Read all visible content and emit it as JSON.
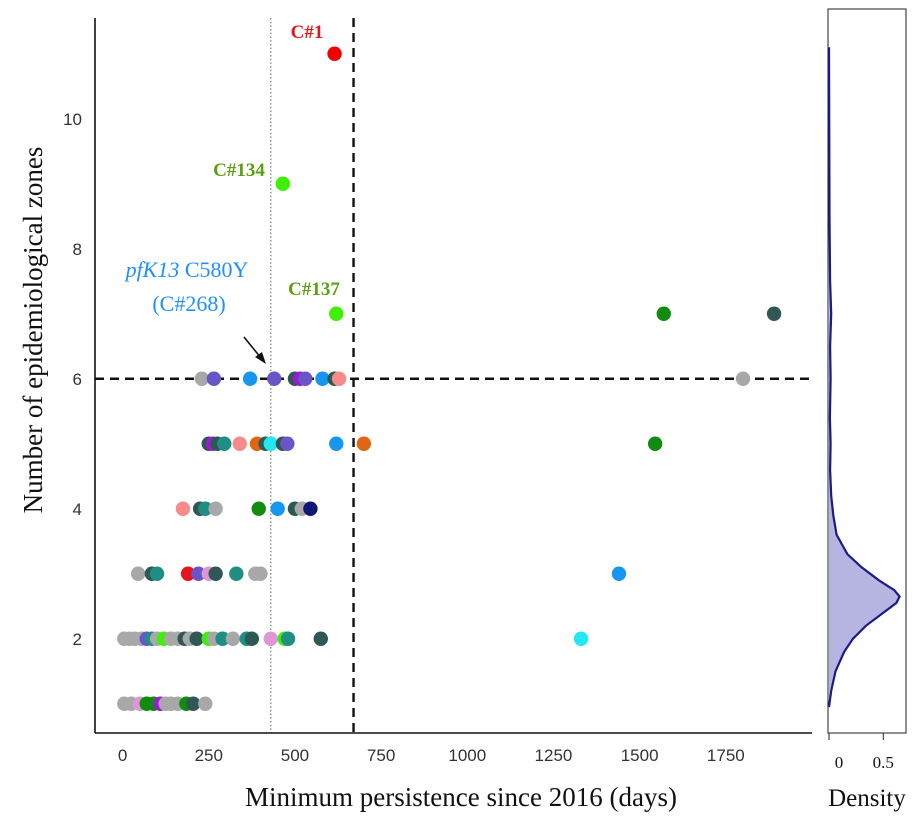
{
  "chart_data": {
    "type": "scatter",
    "xlabel": "Minimum persistence since 2016 (days)",
    "ylabel": "Number of epidemiological zones",
    "xlim": [
      -80,
      2000
    ],
    "ylim": [
      0.55,
      11.55
    ],
    "x_ticks": [
      0,
      250,
      500,
      750,
      1000,
      1250,
      1500,
      1750
    ],
    "y_ticks": [
      2,
      4,
      6,
      8,
      10
    ],
    "reference_lines": {
      "dotted_vertical_x": 430,
      "dashed_vertical_x": 670,
      "dashed_horizontal_y": 6
    },
    "annotations": {
      "c1": {
        "text": "C#1",
        "color": "#e8141b"
      },
      "c134": {
        "text": "C#134",
        "color": "#5aa012"
      },
      "c137": {
        "text": "C#137",
        "color": "#5aa012"
      },
      "pfk13_gene": "pfK13",
      "pfk13_mut": " C580Y",
      "pfk13_clone": "(C#268)",
      "pfk13_color": "#1e90ff"
    },
    "points": [
      {
        "x": 615,
        "y": 11,
        "c": "#f00000"
      },
      {
        "x": 465,
        "y": 9,
        "c": "#3ef005"
      },
      {
        "x": 620,
        "y": 7,
        "c": "#3ef005"
      },
      {
        "x": 1570,
        "y": 7,
        "c": "#118c11"
      },
      {
        "x": 1890,
        "y": 7,
        "c": "#2f5754"
      },
      {
        "x": 230,
        "y": 6,
        "c": "#a8a8a8"
      },
      {
        "x": 265,
        "y": 6,
        "c": "#6a55c8"
      },
      {
        "x": 370,
        "y": 6,
        "c": "#1796f0"
      },
      {
        "x": 440,
        "y": 6,
        "c": "#6a55c8"
      },
      {
        "x": 500,
        "y": 6,
        "c": "#2f5754"
      },
      {
        "x": 515,
        "y": 6,
        "c": "#9a1bd6"
      },
      {
        "x": 530,
        "y": 6,
        "c": "#6a55c8"
      },
      {
        "x": 580,
        "y": 6,
        "c": "#1796f0"
      },
      {
        "x": 615,
        "y": 6,
        "c": "#2f5754"
      },
      {
        "x": 628,
        "y": 6,
        "c": "#f78a8a"
      },
      {
        "x": 1800,
        "y": 6,
        "c": "#a8a8a8"
      },
      {
        "x": 250,
        "y": 5,
        "c": "#2f5754"
      },
      {
        "x": 262,
        "y": 5,
        "c": "#9a1bd6"
      },
      {
        "x": 275,
        "y": 5,
        "c": "#2f5754"
      },
      {
        "x": 295,
        "y": 5,
        "c": "#1f8f86"
      },
      {
        "x": 340,
        "y": 5,
        "c": "#f78a8a"
      },
      {
        "x": 390,
        "y": 5,
        "c": "#e06611"
      },
      {
        "x": 415,
        "y": 5,
        "c": "#2f5754"
      },
      {
        "x": 430,
        "y": 5,
        "c": "#23e8f2"
      },
      {
        "x": 465,
        "y": 5,
        "c": "#2f5754"
      },
      {
        "x": 478,
        "y": 5,
        "c": "#6a55c8"
      },
      {
        "x": 620,
        "y": 5,
        "c": "#1796f0"
      },
      {
        "x": 700,
        "y": 5,
        "c": "#e06611"
      },
      {
        "x": 1545,
        "y": 5,
        "c": "#118c11"
      },
      {
        "x": 175,
        "y": 4,
        "c": "#f78a8a"
      },
      {
        "x": 225,
        "y": 4,
        "c": "#2f5754"
      },
      {
        "x": 240,
        "y": 4,
        "c": "#1f8f86"
      },
      {
        "x": 270,
        "y": 4,
        "c": "#a8a8a8"
      },
      {
        "x": 395,
        "y": 4,
        "c": "#118c11"
      },
      {
        "x": 450,
        "y": 4,
        "c": "#1796f0"
      },
      {
        "x": 500,
        "y": 4,
        "c": "#2f5754"
      },
      {
        "x": 520,
        "y": 4,
        "c": "#a8a8a8"
      },
      {
        "x": 545,
        "y": 4,
        "c": "#0d1775"
      },
      {
        "x": 45,
        "y": 3,
        "c": "#a8a8a8"
      },
      {
        "x": 85,
        "y": 3,
        "c": "#2f5754"
      },
      {
        "x": 100,
        "y": 3,
        "c": "#1f8f86"
      },
      {
        "x": 190,
        "y": 3,
        "c": "#e8141b"
      },
      {
        "x": 220,
        "y": 3,
        "c": "#6a55c8"
      },
      {
        "x": 250,
        "y": 3,
        "c": "#dd96d6"
      },
      {
        "x": 270,
        "y": 3,
        "c": "#2f5754"
      },
      {
        "x": 330,
        "y": 3,
        "c": "#1f8f86"
      },
      {
        "x": 385,
        "y": 3,
        "c": "#a8a8a8"
      },
      {
        "x": 400,
        "y": 3,
        "c": "#a8a8a8"
      },
      {
        "x": 1440,
        "y": 3,
        "c": "#1796f0"
      },
      {
        "x": 5,
        "y": 2,
        "c": "#a8a8a8"
      },
      {
        "x": 20,
        "y": 2,
        "c": "#a8a8a8"
      },
      {
        "x": 35,
        "y": 2,
        "c": "#a8a8a8"
      },
      {
        "x": 55,
        "y": 2,
        "c": "#a8a8a8"
      },
      {
        "x": 70,
        "y": 2,
        "c": "#6a55c8"
      },
      {
        "x": 85,
        "y": 2,
        "c": "#1f8f86"
      },
      {
        "x": 100,
        "y": 2,
        "c": "#a8a8a8"
      },
      {
        "x": 120,
        "y": 2,
        "c": "#3ef005"
      },
      {
        "x": 140,
        "y": 2,
        "c": "#a8a8a8"
      },
      {
        "x": 160,
        "y": 2,
        "c": "#a8a8a8"
      },
      {
        "x": 180,
        "y": 2,
        "c": "#2f5754"
      },
      {
        "x": 195,
        "y": 2,
        "c": "#a8a8a8"
      },
      {
        "x": 215,
        "y": 2,
        "c": "#2f5754"
      },
      {
        "x": 250,
        "y": 2,
        "c": "#3ef005"
      },
      {
        "x": 265,
        "y": 2,
        "c": "#a8a8a8"
      },
      {
        "x": 290,
        "y": 2,
        "c": "#1f8f86"
      },
      {
        "x": 320,
        "y": 2,
        "c": "#a8a8a8"
      },
      {
        "x": 360,
        "y": 2,
        "c": "#1f8f86"
      },
      {
        "x": 375,
        "y": 2,
        "c": "#2f5754"
      },
      {
        "x": 430,
        "y": 2,
        "c": "#dd96d6"
      },
      {
        "x": 470,
        "y": 2,
        "c": "#3ef005"
      },
      {
        "x": 480,
        "y": 2,
        "c": "#1f8f86"
      },
      {
        "x": 575,
        "y": 2,
        "c": "#2f5754"
      },
      {
        "x": 1330,
        "y": 2,
        "c": "#23e8f2"
      },
      {
        "x": 5,
        "y": 1,
        "c": "#a8a8a8"
      },
      {
        "x": 25,
        "y": 1,
        "c": "#a8a8a8"
      },
      {
        "x": 50,
        "y": 1,
        "c": "#dd96d6"
      },
      {
        "x": 70,
        "y": 1,
        "c": "#118c11"
      },
      {
        "x": 90,
        "y": 1,
        "c": "#118c11"
      },
      {
        "x": 110,
        "y": 1,
        "c": "#9a1bd6"
      },
      {
        "x": 125,
        "y": 1,
        "c": "#a8a8a8"
      },
      {
        "x": 140,
        "y": 1,
        "c": "#a8a8a8"
      },
      {
        "x": 160,
        "y": 1,
        "c": "#a8a8a8"
      },
      {
        "x": 185,
        "y": 1,
        "c": "#118c11"
      },
      {
        "x": 205,
        "y": 1,
        "c": "#2f5754"
      },
      {
        "x": 240,
        "y": 1,
        "c": "#a8a8a8"
      }
    ],
    "density_panel": {
      "xlabel": "Density",
      "x_ticks": [
        "0",
        "0.5"
      ],
      "xlim": [
        0,
        0.7
      ],
      "line_color": "#1a1a8a",
      "fill_color": "#b6b4e0",
      "curve": [
        [
          0.95,
          0.0
        ],
        [
          1.2,
          0.02
        ],
        [
          1.5,
          0.06
        ],
        [
          1.8,
          0.14
        ],
        [
          2.0,
          0.22
        ],
        [
          2.2,
          0.34
        ],
        [
          2.4,
          0.5
        ],
        [
          2.55,
          0.62
        ],
        [
          2.65,
          0.65
        ],
        [
          2.75,
          0.6
        ],
        [
          2.9,
          0.46
        ],
        [
          3.1,
          0.3
        ],
        [
          3.3,
          0.17
        ],
        [
          3.6,
          0.07
        ],
        [
          3.9,
          0.04
        ],
        [
          4.2,
          0.02
        ],
        [
          4.6,
          0.01
        ],
        [
          5.0,
          0.015
        ],
        [
          5.4,
          0.008
        ],
        [
          6.0,
          0.015
        ],
        [
          6.5,
          0.01
        ],
        [
          7.0,
          0.02
        ],
        [
          7.5,
          0.01
        ],
        [
          8.5,
          0.005
        ],
        [
          9.5,
          0.003
        ],
        [
          11.1,
          0.0
        ]
      ]
    }
  }
}
